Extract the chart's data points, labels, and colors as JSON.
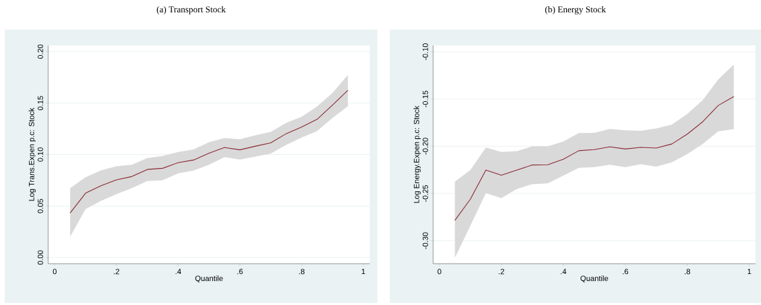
{
  "chart_data": [
    {
      "type": "line",
      "title": "(a) Transport Stock",
      "xlabel": "Quantile",
      "ylabel": "Log Trans.Expen p.c: Stock",
      "x": [
        0.05,
        0.1,
        0.15,
        0.2,
        0.25,
        0.3,
        0.35,
        0.4,
        0.45,
        0.5,
        0.55,
        0.6,
        0.65,
        0.7,
        0.75,
        0.8,
        0.85,
        0.9,
        0.95
      ],
      "series": [
        {
          "color": "#8b2b35",
          "values": [
            0.0432,
            0.0625,
            0.0698,
            0.0754,
            0.0787,
            0.0855,
            0.0867,
            0.0921,
            0.0947,
            0.1013,
            0.1069,
            0.1046,
            0.1081,
            0.1114,
            0.1203,
            0.1267,
            0.1342,
            0.148,
            0.1624
          ],
          "lower": [
            0.0202,
            0.047,
            0.055,
            0.0616,
            0.0674,
            0.0743,
            0.075,
            0.0818,
            0.0844,
            0.0902,
            0.0975,
            0.0952,
            0.098,
            0.101,
            0.1093,
            0.1166,
            0.1227,
            0.1356,
            0.1469
          ],
          "upper": [
            0.0674,
            0.078,
            0.0846,
            0.0886,
            0.0902,
            0.0966,
            0.0987,
            0.1025,
            0.105,
            0.112,
            0.1161,
            0.1149,
            0.1187,
            0.122,
            0.1307,
            0.1368,
            0.1467,
            0.1598,
            0.1774
          ]
        }
      ],
      "xlim": [
        -0.021,
        1.021
      ],
      "ylim": [
        -0.006,
        0.206
      ],
      "xticks": [
        0,
        {
          "value": 0.2,
          "label": ".2"
        },
        {
          "value": 0.4,
          "label": ".4"
        },
        {
          "value": 0.6,
          "label": ".6"
        },
        {
          "value": 0.8,
          "label": ".8"
        },
        1
      ],
      "yticks": [
        {
          "value": 0,
          "label": "0.00"
        },
        0.05,
        {
          "value": 0.1,
          "label": "0.10"
        },
        0.15,
        {
          "value": 0.2,
          "label": "0.20"
        }
      ],
      "grid": "y",
      "marker": "none",
      "line_style": "solid"
    },
    {
      "type": "line",
      "title": "(b) Energy Stock",
      "xlabel": "Quantile",
      "ylabel": "Log Energy.Expen p.c: Stock",
      "x": [
        0.05,
        0.1,
        0.15,
        0.2,
        0.25,
        0.3,
        0.35,
        0.4,
        0.45,
        0.5,
        0.55,
        0.6,
        0.65,
        0.7,
        0.75,
        0.8,
        0.85,
        0.9,
        0.95
      ],
      "series": [
        {
          "color": "#8b2b35",
          "values": [
            -0.2785,
            -0.256,
            -0.2252,
            -0.2306,
            -0.2252,
            -0.2198,
            -0.2196,
            -0.2137,
            -0.2047,
            -0.2035,
            -0.2006,
            -0.2029,
            -0.2012,
            -0.2019,
            -0.1976,
            -0.1871,
            -0.174,
            -0.1568,
            -0.1474
          ],
          "lower": [
            -0.3182,
            -0.2841,
            -0.2496,
            -0.2549,
            -0.2452,
            -0.2401,
            -0.2393,
            -0.2311,
            -0.2229,
            -0.2222,
            -0.2196,
            -0.2222,
            -0.2191,
            -0.2216,
            -0.217,
            -0.2083,
            -0.1976,
            -0.1843,
            -0.1819
          ],
          "upper": [
            -0.2375,
            -0.2252,
            -0.2014,
            -0.206,
            -0.2052,
            -0.2001,
            -0.2001,
            -0.195,
            -0.186,
            -0.1858,
            -0.1817,
            -0.1832,
            -0.1837,
            -0.1812,
            -0.1771,
            -0.1658,
            -0.151,
            -0.1292,
            -0.1136
          ]
        }
      ],
      "xlim": [
        -0.02,
        1.02
      ],
      "ylim": [
        -0.3243,
        -0.0933
      ],
      "xticks": [
        0,
        {
          "value": 0.2,
          "label": ".2"
        },
        {
          "value": 0.4,
          "label": ".4"
        },
        {
          "value": 0.6,
          "label": ".6"
        },
        {
          "value": 0.8,
          "label": ".8"
        },
        1
      ],
      "yticks": [
        {
          "value": -0.3,
          "label": "-0.30"
        },
        -0.25,
        {
          "value": -0.2,
          "label": "-0.20"
        },
        -0.15,
        {
          "value": -0.1,
          "label": "-0.10"
        }
      ],
      "grid": "y",
      "marker": "none",
      "line_style": "solid"
    }
  ]
}
